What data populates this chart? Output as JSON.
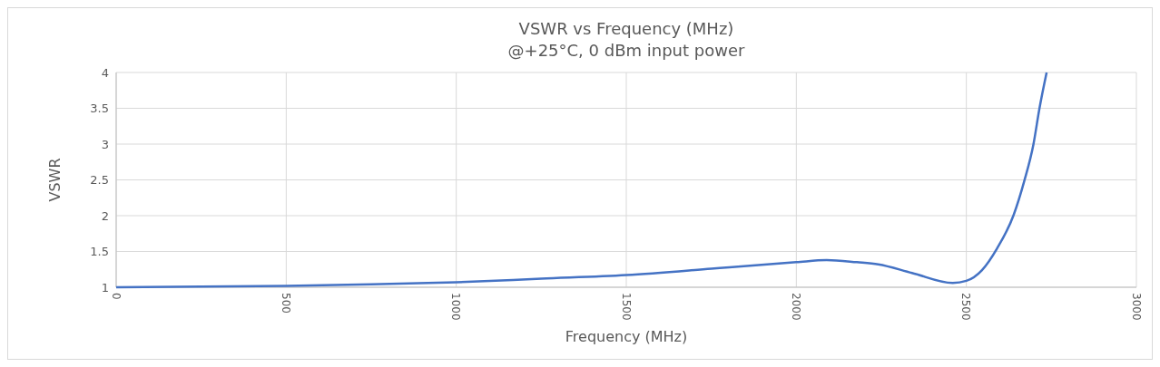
{
  "chart_data": {
    "type": "line",
    "title": "VSWR vs Frequency (MHz)",
    "subtitle": "@+25°C, 0 dBm input power",
    "xlabel": "Frequency (MHz)",
    "ylabel": "VSWR",
    "x": [
      0,
      250,
      500,
      750,
      1000,
      1250,
      1500,
      1750,
      1803,
      2000,
      2089,
      2178,
      2241,
      2340,
      2460,
      2500,
      2546,
      2590,
      2639,
      2670,
      2697,
      2715,
      2736
    ],
    "series": [
      {
        "color": "#4472c4",
        "values": [
          1.0,
          1.01,
          1.02,
          1.04,
          1.07,
          1.12,
          1.17,
          1.26,
          1.28,
          1.35,
          1.38,
          1.35,
          1.32,
          1.2,
          1.06,
          1.09,
          1.24,
          1.54,
          2.01,
          2.48,
          2.99,
          3.5,
          4.0
        ]
      }
    ],
    "xlim": [
      0,
      3000
    ],
    "xticks": [
      0,
      500,
      1000,
      1500,
      2000,
      2500,
      3000
    ],
    "ylim": [
      1,
      4
    ],
    "yticks": [
      1,
      1.5,
      2,
      2.5,
      3,
      3.5,
      4
    ],
    "grid": true,
    "marker": "none",
    "line_style": "solid"
  }
}
